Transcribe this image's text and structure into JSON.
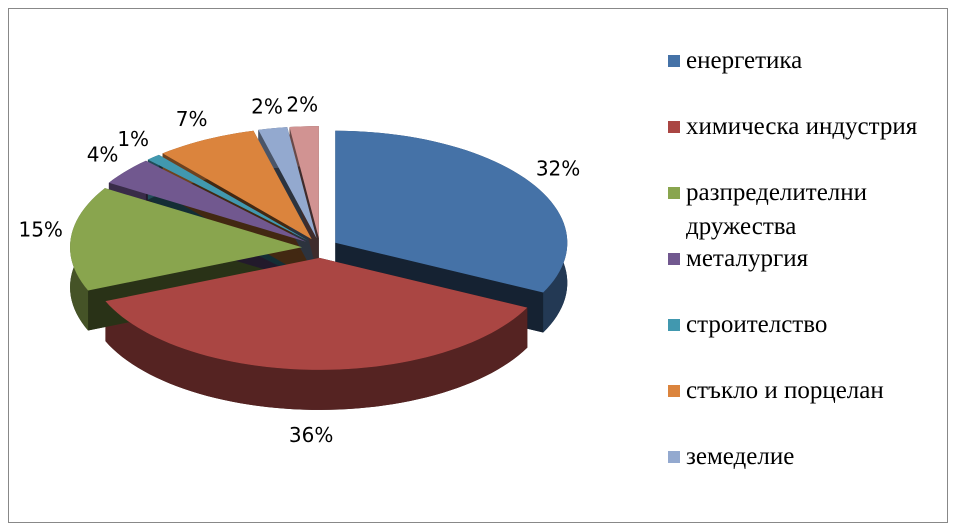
{
  "chart_data": {
    "type": "pie",
    "categories": [
      "енергетика",
      "химическа индустрия",
      "разпределителни дружества",
      "металургия",
      "строителство",
      "стъкло и порцелан",
      "земеделие",
      null
    ],
    "values": [
      32,
      36,
      15,
      4,
      1,
      7,
      2,
      2
    ],
    "value_labels": [
      "32%",
      "36%",
      "15%",
      "4%",
      "1%",
      "7%",
      "2%",
      "2%"
    ],
    "colors": [
      "#4572a7",
      "#aa4643",
      "#89a54e",
      "#71588f",
      "#4198af",
      "#db843d",
      "#93a9cf",
      "#d19392"
    ]
  }
}
